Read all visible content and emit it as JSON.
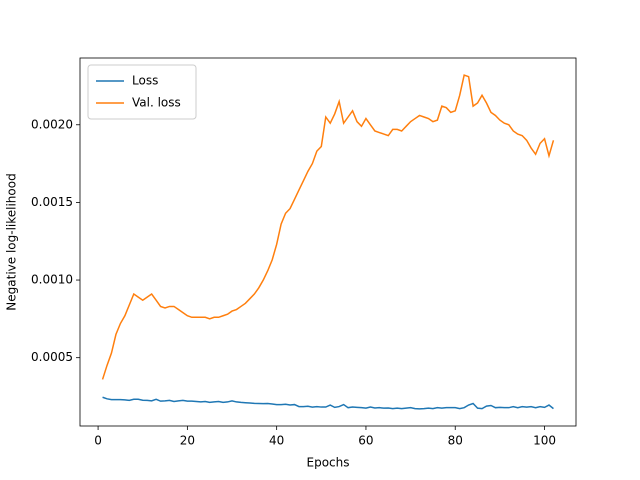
{
  "chart_data": {
    "type": "line",
    "x_label": "Epochs",
    "y_label": "Negative log-likelihood",
    "x": [
      1,
      2,
      3,
      4,
      5,
      6,
      7,
      8,
      9,
      10,
      11,
      12,
      13,
      14,
      15,
      16,
      17,
      18,
      19,
      20,
      21,
      22,
      23,
      24,
      25,
      26,
      27,
      28,
      29,
      30,
      31,
      32,
      33,
      34,
      35,
      36,
      37,
      38,
      39,
      40,
      41,
      42,
      43,
      44,
      45,
      46,
      47,
      48,
      49,
      50,
      51,
      52,
      53,
      54,
      55,
      56,
      57,
      58,
      59,
      60,
      61,
      62,
      63,
      64,
      65,
      66,
      67,
      68,
      69,
      70,
      71,
      72,
      73,
      74,
      75,
      76,
      77,
      78,
      79,
      80,
      81,
      82,
      83,
      84,
      85,
      86,
      87,
      88,
      89,
      90,
      91,
      92,
      93,
      94,
      95,
      96,
      97,
      98,
      99,
      100,
      101,
      102
    ],
    "series": [
      {
        "name": "Loss",
        "color": "#1f77b4",
        "values": [
          0.000245,
          0.000235,
          0.00023,
          0.00023,
          0.00023,
          0.000228,
          0.000225,
          0.000232,
          0.000232,
          0.000226,
          0.000225,
          0.000222,
          0.000232,
          0.00022,
          0.000222,
          0.000225,
          0.000218,
          0.000222,
          0.000225,
          0.00022,
          0.00022,
          0.000218,
          0.000215,
          0.000218,
          0.000212,
          0.000215,
          0.000218,
          0.000212,
          0.000215,
          0.000222,
          0.000215,
          0.000212,
          0.00021,
          0.000208,
          0.000206,
          0.000205,
          0.000204,
          0.000205,
          0.000202,
          0.000198,
          0.000198,
          0.0002,
          0.000195,
          0.000198,
          0.000185,
          0.000185,
          0.000187,
          0.000182,
          0.000185,
          0.000182,
          0.000182,
          0.000195,
          0.00018,
          0.000185,
          0.000198,
          0.000178,
          0.000182,
          0.00018,
          0.000178,
          0.000175,
          0.000182,
          0.000176,
          0.000178,
          0.000175,
          0.000176,
          0.000172,
          0.000175,
          0.000172,
          0.000175,
          0.000178,
          0.000172,
          0.00017,
          0.000172,
          0.000175,
          0.000172,
          0.000178,
          0.000175,
          0.000178,
          0.000178,
          0.000178,
          0.000172,
          0.000178,
          0.000195,
          0.000205,
          0.000175,
          0.000172,
          0.000188,
          0.000192,
          0.000178,
          0.00018,
          0.000178,
          0.000178,
          0.000185,
          0.000178,
          0.000185,
          0.000182,
          0.000185,
          0.000178,
          0.000185,
          0.00018,
          0.000195,
          0.000172
        ]
      },
      {
        "name": "Val. loss",
        "color": "#ff7f0e",
        "values": [
          0.00036,
          0.00045,
          0.00053,
          0.00065,
          0.00072,
          0.00077,
          0.00084,
          0.00091,
          0.00089,
          0.00087,
          0.00089,
          0.00091,
          0.00087,
          0.00083,
          0.00082,
          0.00083,
          0.00083,
          0.00081,
          0.00079,
          0.00077,
          0.00076,
          0.00076,
          0.00076,
          0.00076,
          0.00075,
          0.00076,
          0.00076,
          0.00077,
          0.00078,
          0.0008,
          0.00081,
          0.00083,
          0.00085,
          0.00088,
          0.00091,
          0.00095,
          0.001,
          0.00106,
          0.00113,
          0.00123,
          0.00136,
          0.00143,
          0.00146,
          0.00152,
          0.00158,
          0.00164,
          0.0017,
          0.00175,
          0.00183,
          0.00186,
          0.00205,
          0.00201,
          0.00207,
          0.00215,
          0.00201,
          0.00205,
          0.00209,
          0.00202,
          0.00199,
          0.00204,
          0.002,
          0.00196,
          0.00195,
          0.00194,
          0.00193,
          0.00197,
          0.00197,
          0.00196,
          0.00199,
          0.00202,
          0.00204,
          0.00206,
          0.00205,
          0.00204,
          0.00202,
          0.00203,
          0.00212,
          0.00211,
          0.00208,
          0.00209,
          0.00219,
          0.00232,
          0.00231,
          0.00212,
          0.00214,
          0.00219,
          0.00214,
          0.00208,
          0.00206,
          0.00203,
          0.00201,
          0.002,
          0.00196,
          0.00194,
          0.00193,
          0.0019,
          0.00185,
          0.00181,
          0.00188,
          0.00191,
          0.0018,
          0.0019
        ]
      }
    ],
    "xlim": [
      -4.05,
      107.05
    ],
    "xticks": [
      0,
      20,
      40,
      60,
      80,
      100
    ],
    "ylim": [
      6e-05,
      0.00243
    ],
    "yticks": [
      0.0005,
      {
        "value": 0.001,
        "label": "0.0010"
      },
      {
        "value": 0.0015,
        "label": "0.0015"
      },
      {
        "value": 0.002,
        "label": "0.0020"
      }
    ],
    "grid": false,
    "legend": "upper left"
  }
}
